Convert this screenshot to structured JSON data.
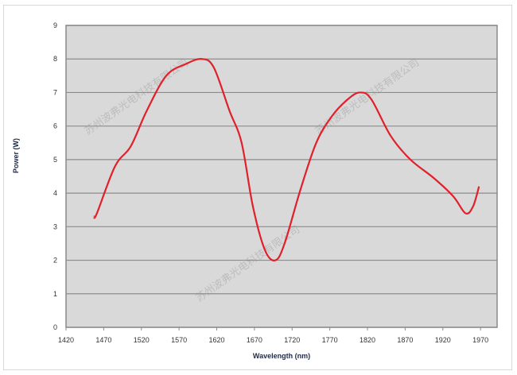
{
  "chart_data": {
    "type": "line",
    "title": "",
    "xlabel": "Wavelength (nm)",
    "ylabel": "Power (W)",
    "xlim": [
      1420,
      1992
    ],
    "ylim": [
      0,
      9
    ],
    "x_ticks": [
      "1420",
      "1470",
      "1520",
      "1570",
      "1620",
      "1670",
      "1720",
      "1770",
      "1820",
      "1870",
      "1920",
      "1970"
    ],
    "y_ticks": [
      "0",
      "1",
      "2",
      "3",
      "4",
      "5",
      "6",
      "7",
      "8",
      "9"
    ],
    "grid": "horizontal",
    "legend": "none",
    "background_color": "#d9d9d9",
    "line_color": "#e0202a",
    "series": [
      {
        "x": [
          1457,
          1461,
          1485,
          1506,
          1527,
          1553,
          1579,
          1600,
          1616,
          1637,
          1653,
          1668,
          1684,
          1698,
          1710,
          1731,
          1752,
          1773,
          1794,
          1810,
          1825,
          1851,
          1877,
          1908,
          1934,
          1950,
          1960,
          1968
        ],
        "y": [
          3.3,
          3.4,
          4.8,
          5.4,
          6.45,
          7.5,
          7.85,
          8.0,
          7.75,
          6.45,
          5.5,
          3.6,
          2.3,
          2.0,
          2.5,
          4.1,
          5.5,
          6.3,
          6.8,
          7.0,
          6.8,
          5.7,
          5.0,
          4.45,
          3.9,
          3.4,
          3.6,
          4.2
        ]
      }
    ]
  },
  "watermark": "苏州波弗光电科技有限公司"
}
